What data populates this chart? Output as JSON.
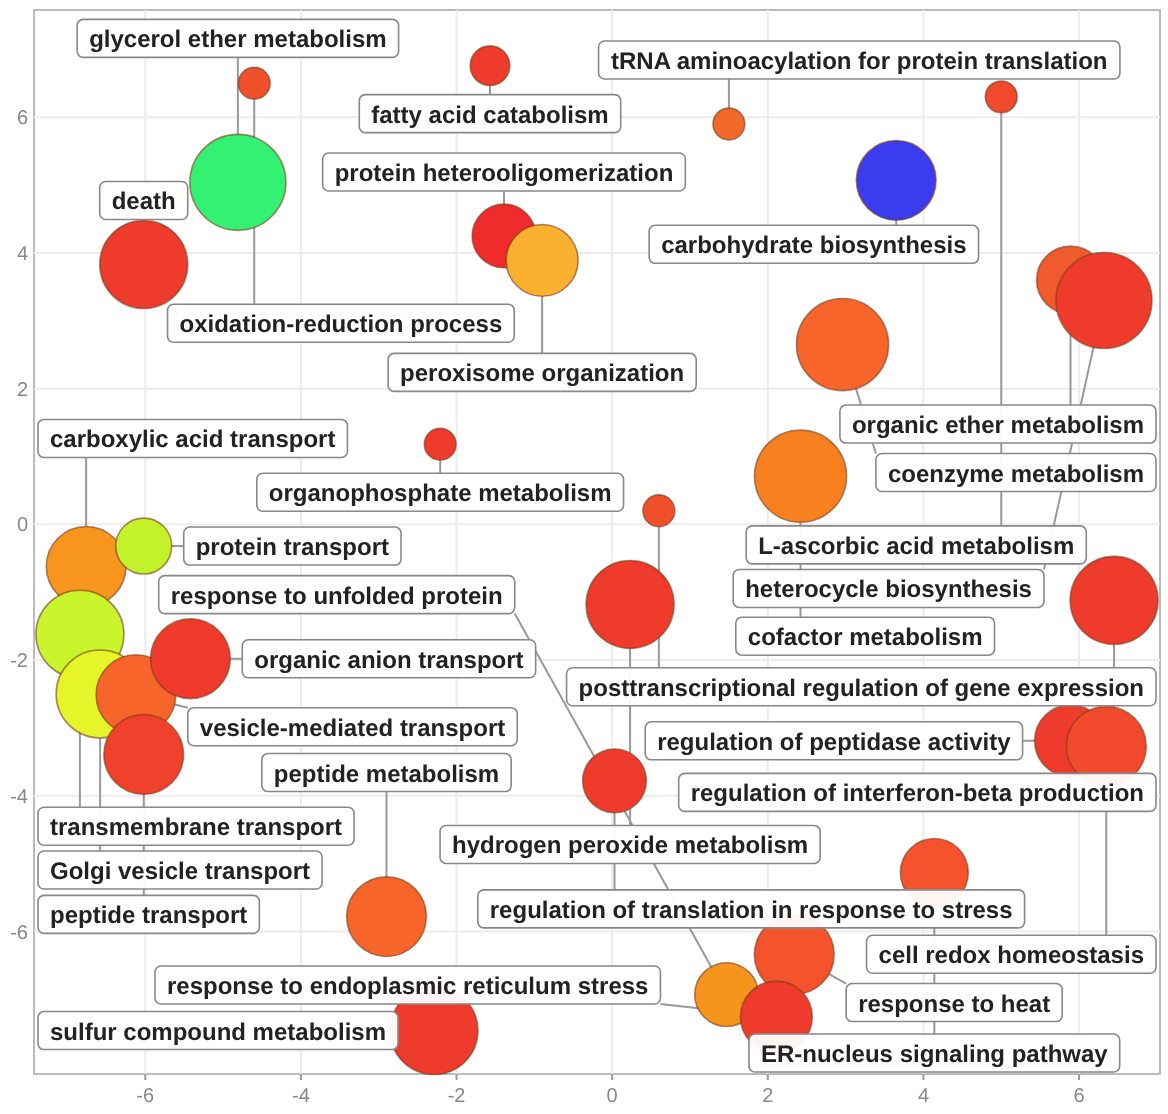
{
  "chart_data": {
    "type": "bubble",
    "xlim": [
      -7.43,
      7.04
    ],
    "ylim": [
      -8.1,
      7.58
    ],
    "xticks": [
      -6,
      -4,
      -2,
      0,
      2,
      4,
      6
    ],
    "yticks": [
      -6,
      -4,
      -2,
      0,
      2,
      4,
      6
    ],
    "grid": true,
    "x": [
      -6.02,
      -4.81,
      -1.57,
      -4.6,
      -1.39,
      -0.9,
      3.65,
      1.5,
      5.0,
      5.89,
      6.32,
      2.96,
      2.42,
      -2.21,
      -6.76,
      -6.02,
      -6.84,
      -6.58,
      -6.12,
      -5.42,
      -6.02,
      0.6,
      0.23,
      6.45,
      0.03,
      5.89,
      6.35,
      4.14,
      2.34,
      1.47,
      2.11,
      -2.9,
      -2.29
    ],
    "values": [
      3.83,
      5.04,
      6.76,
      6.5,
      4.25,
      3.89,
      5.07,
      5.9,
      6.3,
      3.6,
      3.3,
      2.65,
      0.71,
      1.18,
      -0.62,
      -0.32,
      -1.62,
      -2.5,
      -2.51,
      -1.98,
      -3.39,
      0.2,
      -1.18,
      -1.12,
      -3.78,
      -3.19,
      -3.27,
      -5.13,
      -6.34,
      -6.93,
      -7.26,
      -5.78,
      -7.46
    ],
    "sizes": [
      0.84,
      1,
      0.17,
      0.11,
      0.44,
      0.56,
      0.69,
      0.11,
      0.11,
      0.5,
      1,
      0.92,
      0.92,
      0.11,
      0.69,
      0.34,
      0.84,
      0.84,
      0.69,
      0.69,
      0.69,
      0.11,
      0.84,
      0.84,
      0.44,
      0.56,
      0.69,
      0.5,
      0.69,
      0.44,
      0.56,
      0.69,
      0.84
    ],
    "colors": [
      "#ef3b2c",
      "#33f271",
      "#ef3b2c",
      "#f0502a",
      "#ef2b2b",
      "#fbb02f",
      "#3b3bef",
      "#f16a2c",
      "#ef4a2c",
      "#f05a2c",
      "#ef3b2c",
      "#f7652a",
      "#f8801f",
      "#ef3b2c",
      "#f7951f",
      "#c4f22a",
      "#c8f52c",
      "#e5f52a",
      "#f7652a",
      "#ef3b2c",
      "#ef412c",
      "#f0502a",
      "#ef3b2c",
      "#ef3b2c",
      "#ef3b2c",
      "#ef3b2c",
      "#f14a2c",
      "#f5532b",
      "#f5532b",
      "#f7941e",
      "#ef3b2c",
      "#f7652a",
      "#ef3b2c"
    ],
    "annotations": [
      {
        "text": "death",
        "x": -6.02,
        "y": 3.83
      },
      {
        "text": "glycerol ether metabolism",
        "x": -4.81,
        "y": 5.04
      },
      {
        "text": "fatty acid catabolism",
        "x": -1.57,
        "y": 6.76
      },
      {
        "text": "oxidation-reduction process",
        "x": -4.6,
        "y": 6.5
      },
      {
        "text": "protein heterooligomerization",
        "x": -1.39,
        "y": 4.25
      },
      {
        "text": "peroxisome organization",
        "x": -0.9,
        "y": 3.89
      },
      {
        "text": "carbohydrate biosynthesis",
        "x": 3.65,
        "y": 5.07
      },
      {
        "text": "tRNA aminoacylation for protein translation",
        "x": 1.5,
        "y": 5.9
      },
      {
        "text": "L-ascorbic acid metabolism",
        "x": 5.0,
        "y": 6.3
      },
      {
        "text": "organic ether metabolism",
        "x": 5.89,
        "y": 3.6
      },
      {
        "text": "heterocycle biosynthesis",
        "x": 6.32,
        "y": 3.3
      },
      {
        "text": "coenzyme metabolism",
        "x": 2.96,
        "y": 2.65
      },
      {
        "text": "cofactor metabolism",
        "x": 2.42,
        "y": 0.71
      },
      {
        "text": "organophosphate metabolism",
        "x": -2.21,
        "y": 1.18
      },
      {
        "text": "carboxylic acid transport",
        "x": -6.76,
        "y": -0.62
      },
      {
        "text": "protein transport",
        "x": -6.02,
        "y": -0.32
      },
      {
        "text": "transmembrane transport",
        "x": -6.84,
        "y": -1.62
      },
      {
        "text": "Golgi vesicle transport",
        "x": -6.58,
        "y": -2.5
      },
      {
        "text": "vesicle-mediated transport",
        "x": -6.12,
        "y": -2.51
      },
      {
        "text": "organic anion transport",
        "x": -5.42,
        "y": -1.98
      },
      {
        "text": "peptide transport",
        "x": -6.02,
        "y": -3.39
      },
      {
        "text": "posttranscriptional regulation of gene expression",
        "x": 0.6,
        "y": 0.2
      },
      {
        "text": "hydrogen peroxide metabolism",
        "x": 0.23,
        "y": -1.18
      },
      {
        "text": "regulation of interferon-beta production",
        "x": 6.45,
        "y": -1.12
      },
      {
        "text": "regulation of translation in response to stress",
        "x": 0.03,
        "y": -3.78
      },
      {
        "text": "regulation of peptidase activity",
        "x": 5.89,
        "y": -3.19
      },
      {
        "text": "cell redox homeostasis",
        "x": 6.35,
        "y": -3.27
      },
      {
        "text": "ER-nucleus signaling pathway",
        "x": 4.14,
        "y": -5.13
      },
      {
        "text": "response to heat",
        "x": 2.34,
        "y": -6.34
      },
      {
        "text": "response to unfolded protein",
        "x": 1.47,
        "y": -6.93
      },
      {
        "text": "response to endoplasmic reticulum stress",
        "x": 2.11,
        "y": -7.26
      },
      {
        "text": "peptide metabolism",
        "x": -2.9,
        "y": -5.78
      },
      {
        "text": "sulfur compound metabolism",
        "x": -2.29,
        "y": -7.46
      }
    ]
  }
}
